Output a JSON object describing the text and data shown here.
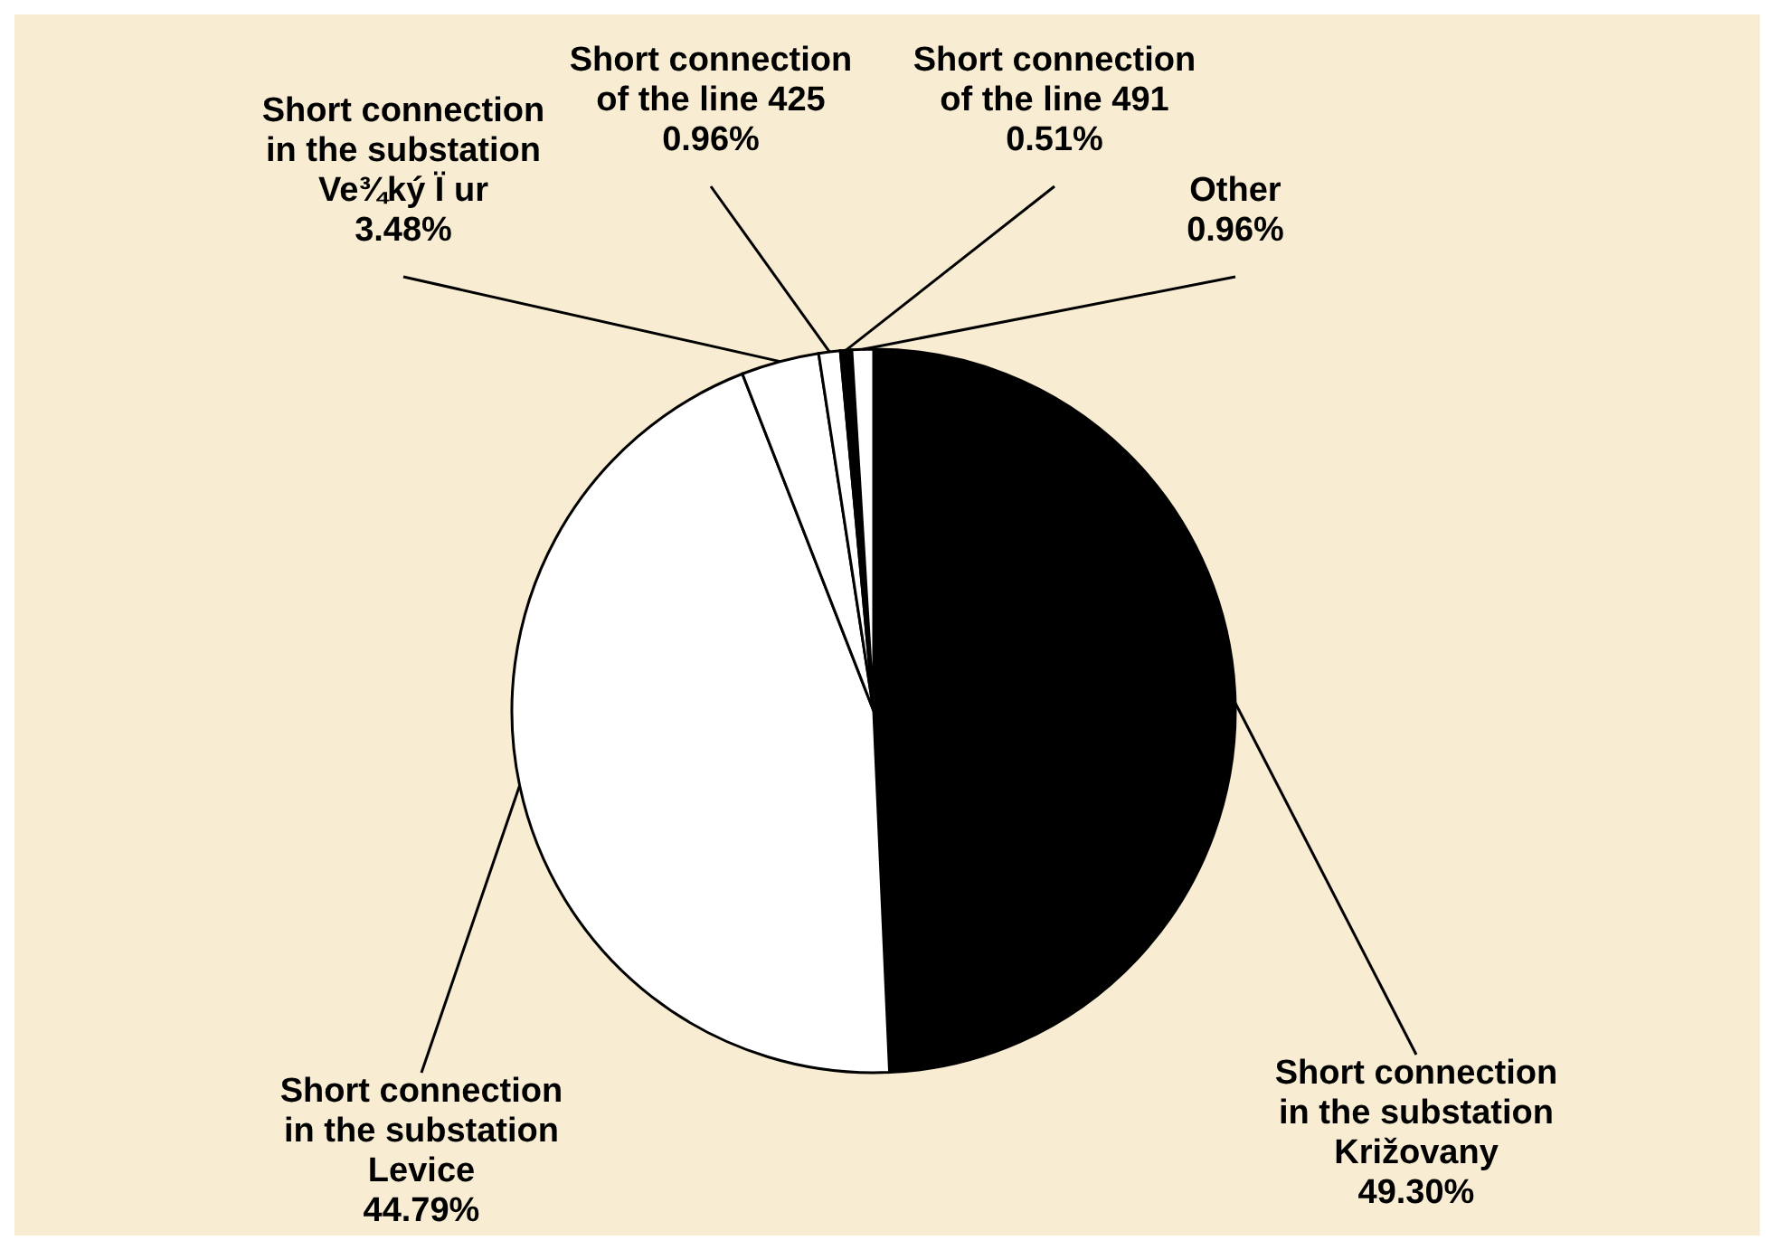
{
  "chart_data": {
    "type": "pie",
    "categories": [
      "Short connection in the substation Križovany",
      "Short connection in the substation Levice",
      "Short connection in the substation Ve¾ký Ï ur",
      "Short connection of the line 425",
      "Short connection of the line 491",
      "Other"
    ],
    "values": [
      49.3,
      44.79,
      3.48,
      0.96,
      0.51,
      0.96
    ],
    "value_labels": [
      "49.30%",
      "44.79%",
      "3.48%",
      "0.96%",
      "0.51%",
      "0.96%"
    ],
    "colors": [
      "#000000",
      "#ffffff",
      "#ffffff",
      "#ffffff",
      "#000000",
      "#ffffff"
    ],
    "legend": false
  }
}
